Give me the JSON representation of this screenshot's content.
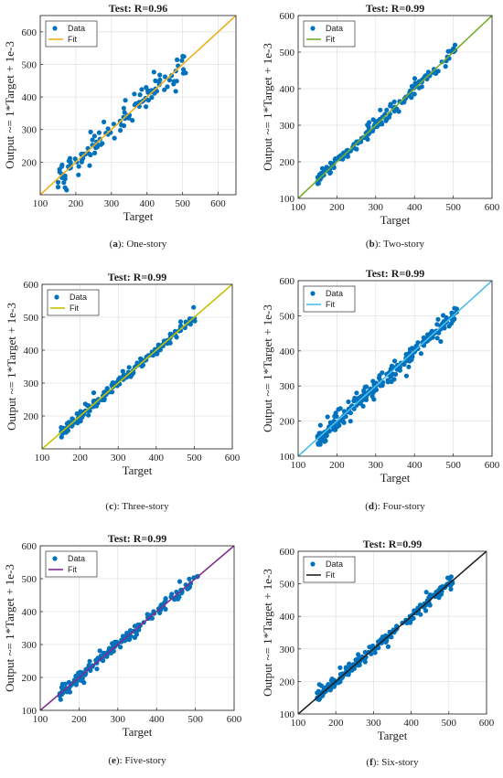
{
  "chart_data": [
    {
      "type": "scatter",
      "panel_letter": "a",
      "caption": ": One-story",
      "title": "Test: R=0.96",
      "xlabel": "Target",
      "ylabel": "Output ~= 1*Target + 1e-3",
      "xlim": [
        100,
        650
      ],
      "ylim": [
        100,
        650
      ],
      "xticks": [
        "100",
        "200",
        "300",
        "400",
        "500",
        "600"
      ],
      "yticks": [
        "200",
        "300",
        "400",
        "500",
        "600"
      ],
      "grid": true,
      "legend_position": "top-left",
      "series": [
        {
          "name": "Data",
          "color": "#0072BD",
          "spread": 22,
          "n": 120
        },
        {
          "name": "Fit",
          "color": "#EDB120",
          "line": [
            [
              100,
              100
            ],
            [
              650,
              650
            ]
          ]
        }
      ]
    },
    {
      "type": "scatter",
      "panel_letter": "b",
      "caption": ": Two-story",
      "title": "Test: R=0.99",
      "xlabel": "Target",
      "ylabel": "Output ~= 1*Target + 1e-3",
      "xlim": [
        100,
        600
      ],
      "ylim": [
        100,
        600
      ],
      "xticks": [
        "100",
        "200",
        "300",
        "400",
        "500",
        "600"
      ],
      "yticks": [
        "100",
        "200",
        "300",
        "400",
        "500",
        "600"
      ],
      "grid": true,
      "legend_position": "top-left",
      "series": [
        {
          "name": "Data",
          "color": "#0072BD",
          "spread": 8,
          "n": 170
        },
        {
          "name": "Fit",
          "color": "#77AC30",
          "line": [
            [
              100,
              100
            ],
            [
              600,
              600
            ]
          ]
        }
      ]
    },
    {
      "type": "scatter",
      "panel_letter": "c",
      "caption": ": Three-story",
      "title": "Test: R=0.99",
      "xlabel": "Target",
      "ylabel": "Output ~= 1*Target + 1e-3",
      "xlim": [
        100,
        600
      ],
      "ylim": [
        100,
        600
      ],
      "xticks": [
        "100",
        "200",
        "300",
        "400",
        "500",
        "600"
      ],
      "yticks": [
        "200",
        "300",
        "400",
        "500",
        "600"
      ],
      "grid": true,
      "legend_position": "top-left",
      "series": [
        {
          "name": "Data",
          "color": "#0072BD",
          "spread": 9,
          "n": 190
        },
        {
          "name": "Fit",
          "color": "#C2C200",
          "line": [
            [
              100,
              100
            ],
            [
              600,
              600
            ]
          ]
        }
      ]
    },
    {
      "type": "scatter",
      "panel_letter": "d",
      "caption": ": Four-story",
      "title": "Test: R=0.99",
      "xlabel": "Target",
      "ylabel": "Output ~= 1*Target + 1e-3",
      "xlim": [
        100,
        600
      ],
      "ylim": [
        100,
        600
      ],
      "xticks": [
        "100",
        "200",
        "300",
        "400",
        "500",
        "600"
      ],
      "yticks": [
        "100",
        "200",
        "300",
        "400",
        "500",
        "600"
      ],
      "grid": true,
      "legend_position": "top-left",
      "series": [
        {
          "name": "Data",
          "color": "#0072BD",
          "spread": 12,
          "n": 230
        },
        {
          "name": "Fit",
          "color": "#4DBEEE",
          "line": [
            [
              100,
              100
            ],
            [
              600,
              600
            ]
          ]
        }
      ]
    },
    {
      "type": "scatter",
      "panel_letter": "e",
      "caption": ": Five-story",
      "title": "Test: R=0.99",
      "xlabel": "Target",
      "ylabel": "Output ~= 1*Target + 1e-3",
      "xlim": [
        100,
        600
      ],
      "ylim": [
        100,
        600
      ],
      "xticks": [
        "100",
        "200",
        "300",
        "400",
        "500",
        "600"
      ],
      "yticks": [
        "100",
        "200",
        "300",
        "400",
        "500",
        "600"
      ],
      "grid": true,
      "legend_position": "top-left",
      "series": [
        {
          "name": "Data",
          "color": "#0072BD",
          "spread": 8,
          "n": 180
        },
        {
          "name": "Fit",
          "color": "#7E2F8E",
          "line": [
            [
              100,
              100
            ],
            [
              600,
              600
            ]
          ]
        }
      ]
    },
    {
      "type": "scatter",
      "panel_letter": "f",
      "caption": ": Six-story",
      "title": "Test: R=0.99",
      "xlabel": "Target",
      "ylabel": "Output ~= 1*Target + 1e-3",
      "xlim": [
        100,
        600
      ],
      "ylim": [
        100,
        600
      ],
      "xticks": [
        "100",
        "200",
        "300",
        "400",
        "500",
        "600"
      ],
      "yticks": [
        "100",
        "200",
        "300",
        "400",
        "500",
        "600"
      ],
      "grid": true,
      "legend_position": "top-left",
      "series": [
        {
          "name": "Data",
          "color": "#0072BD",
          "spread": 9,
          "n": 200
        },
        {
          "name": "Fit",
          "color": "#222222",
          "line": [
            [
              100,
              100
            ],
            [
              600,
              600
            ]
          ]
        }
      ]
    }
  ]
}
